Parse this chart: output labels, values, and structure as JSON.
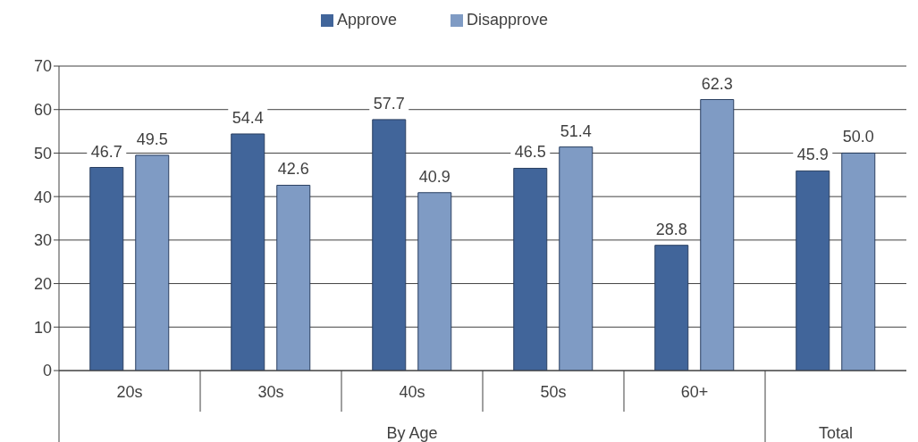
{
  "chart_data": {
    "type": "bar",
    "categories": [
      "20s",
      "30s",
      "40s",
      "50s",
      "60+",
      null
    ],
    "series": [
      {
        "name": "Approve",
        "color": "#41659a",
        "values": [
          46.7,
          54.4,
          57.7,
          46.5,
          28.8,
          45.9
        ],
        "value_labels": [
          "46.7",
          "54.4",
          "57.7",
          "46.5",
          "28.8",
          "45.9"
        ]
      },
      {
        "name": "Disapprove",
        "color": "#7f9bc4",
        "values": [
          49.5,
          42.6,
          40.9,
          51.4,
          62.3,
          50.0
        ],
        "value_labels": [
          "49.5",
          "42.6",
          "40.9",
          "51.4",
          "62.3",
          "50.0"
        ]
      }
    ],
    "ylim": [
      0,
      70
    ],
    "yticks": [
      0,
      10,
      20,
      30,
      40,
      50,
      60,
      70
    ],
    "grid": "y",
    "legend": "top",
    "annotations": [
      "By Age",
      "Total"
    ]
  }
}
